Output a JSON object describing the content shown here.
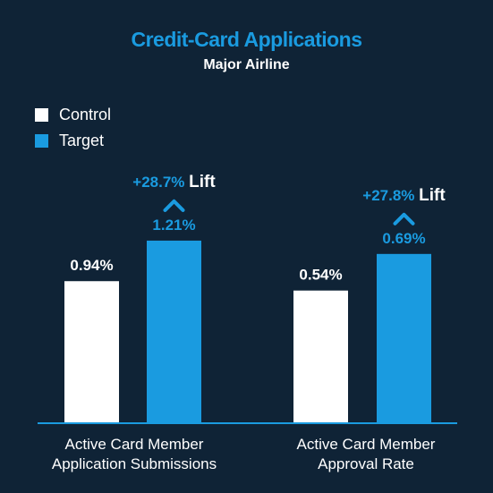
{
  "colors": {
    "background": "#0f2336",
    "control": "#ffffff",
    "target": "#1a9be0",
    "baseline": "#1a9be0"
  },
  "chart_data": {
    "type": "bar",
    "title": "Credit-Card Applications",
    "subtitle": "Major Airline",
    "legend": [
      {
        "name": "Control",
        "color": "#ffffff"
      },
      {
        "name": "Target",
        "color": "#1a9be0"
      }
    ],
    "legend_position": "top-left",
    "grid": false,
    "groups": [
      {
        "label_line1": "Active Card Member",
        "label_line2": "Application Submissions",
        "control": 0.94,
        "control_label": "0.94%",
        "target": 1.21,
        "target_label": "1.21%",
        "lift_value": "+28.7%",
        "lift_word": "Lift",
        "ylim": [
          0,
          1.43
        ]
      },
      {
        "label_line1": "Active Card Member",
        "label_line2": "Approval Rate",
        "control": 0.54,
        "control_label": "0.54%",
        "target": 0.69,
        "target_label": "0.69%",
        "lift_value": "+27.8%",
        "lift_word": "Lift",
        "ylim": [
          0,
          0.88
        ]
      }
    ]
  }
}
